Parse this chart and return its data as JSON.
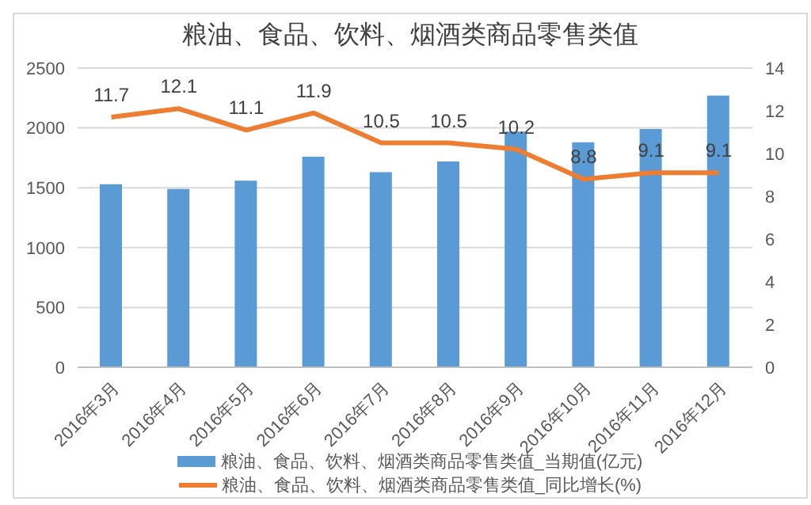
{
  "chart_data": {
    "type": "bar",
    "title": "粮油、食品、饮料、烟酒类商品零售类值",
    "categories": [
      "2016年3月",
      "2016年4月",
      "2016年5月",
      "2016年6月",
      "2016年7月",
      "2016年8月",
      "2016年9月",
      "2016年10月",
      "2016年11月",
      "2016年12月"
    ],
    "series": [
      {
        "name": "粮油、食品、饮料、烟酒类商品零售类值_当期值(亿元)",
        "color": "#5b9bd5",
        "values": [
          1530,
          1490,
          1560,
          1760,
          1630,
          1720,
          1970,
          1880,
          1990,
          2270
        ]
      },
      {
        "name": "粮油、食品、饮料、烟酒类商品零售类值_同比增长(%)",
        "type": "line",
        "axis": "y2",
        "color": "#ed7d31",
        "values": [
          11.7,
          12.1,
          11.1,
          11.9,
          10.5,
          10.5,
          10.2,
          8.8,
          9.1,
          9.1
        ],
        "data_labels": true
      }
    ],
    "ylim": [
      0,
      2500
    ],
    "yticks": [
      0,
      500,
      1000,
      1500,
      2000,
      2500
    ],
    "y2lim": [
      0,
      14
    ],
    "y2ticks": [
      0,
      2,
      4,
      6,
      8,
      10,
      12,
      14
    ],
    "grid": "y",
    "legend": "bottom",
    "marker": "none"
  }
}
